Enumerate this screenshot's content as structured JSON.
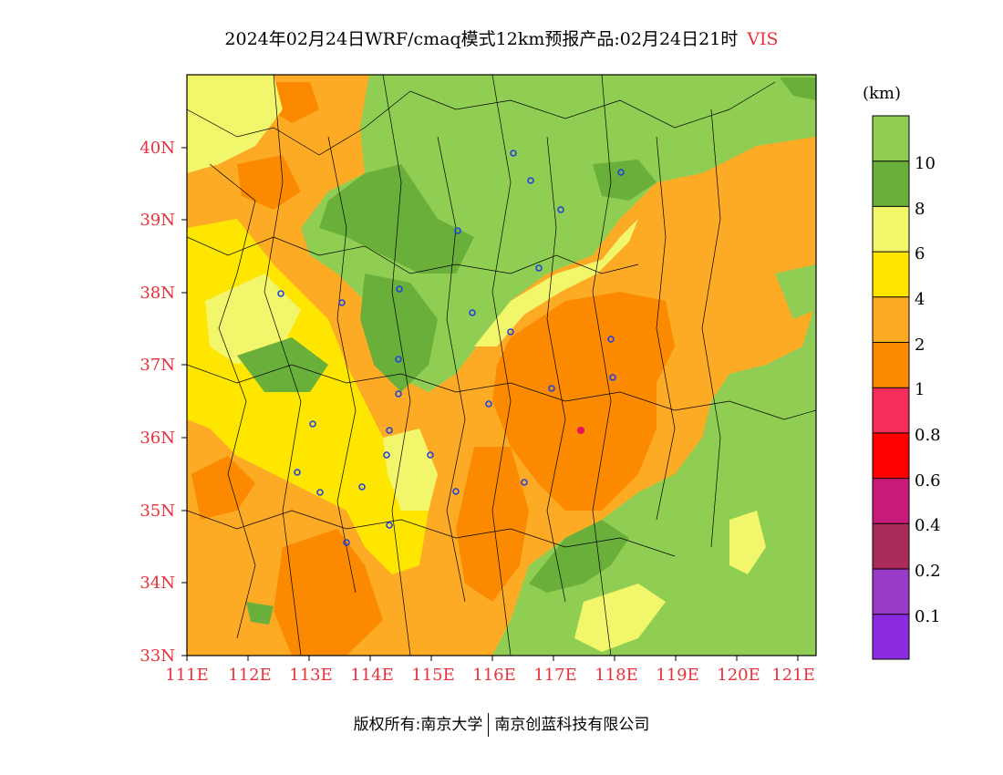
{
  "title": {
    "main": "2024年02月24日WRF/cmaq模式12km预报产品:02月24日21时",
    "variable": "VIS"
  },
  "map": {
    "lon_labels": [
      "111E",
      "112E",
      "113E",
      "114E",
      "115E",
      "116E",
      "117E",
      "118E",
      "119E",
      "120E",
      "121E"
    ],
    "lat_labels": [
      "40N",
      "39N",
      "38N",
      "37N",
      "36N",
      "35N",
      "34N",
      "33N"
    ],
    "lon_range": [
      111,
      121.3
    ],
    "lat_range": [
      33,
      41
    ],
    "city_marker_color": "#2244dd",
    "hotspot_color": "#e81060"
  },
  "colorbar": {
    "unit": "(km)",
    "levels": [
      "10",
      "8",
      "6",
      "4",
      "2",
      "1",
      "0.8",
      "0.6",
      "0.4",
      "0.2",
      "0.1"
    ],
    "colors_top_to_bottom": [
      "#8fce52",
      "#6aaf3a",
      "#f2f66a",
      "#ffe600",
      "#fdab25",
      "#fb8a00",
      "#f52d5a",
      "#ff0000",
      "#c81a7a",
      "#a82b5a",
      "#9a3ac6",
      "#8a2be2"
    ]
  },
  "footer": {
    "left": "版权所有:南京大学",
    "right": "南京创蓝科技有限公司"
  }
}
